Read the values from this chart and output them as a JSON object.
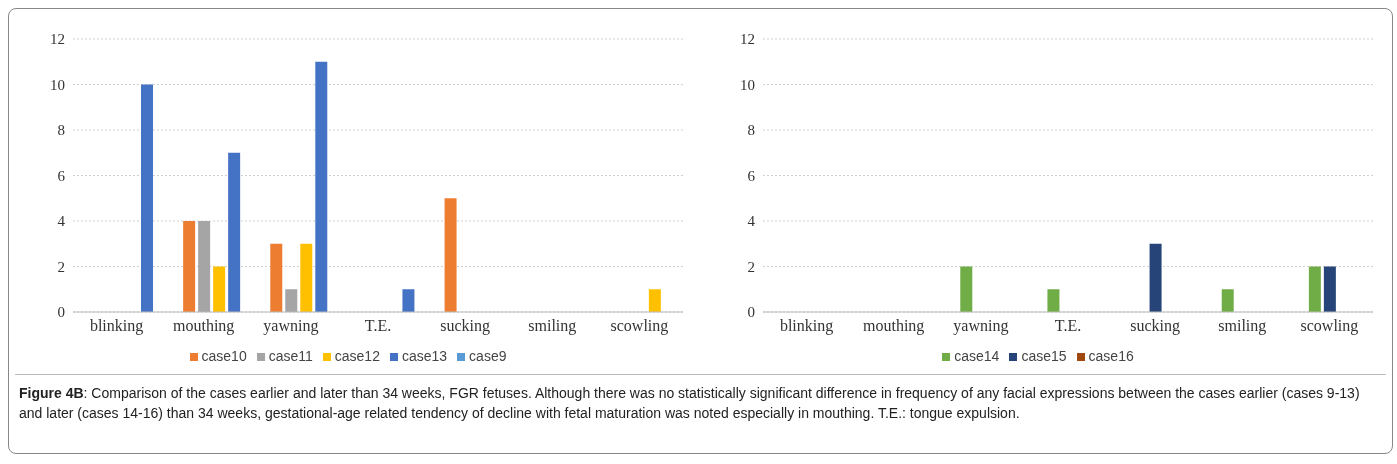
{
  "chart_data": [
    {
      "type": "bar",
      "categories": [
        "blinking",
        "mouthing",
        "yawning",
        "T.E.",
        "sucking",
        "smiling",
        "scowling"
      ],
      "series": [
        {
          "name": "case9",
          "color": "#5b9bd5",
          "values": [
            0,
            0,
            0,
            0,
            0,
            0,
            0
          ]
        },
        {
          "name": "case10",
          "color": "#ed7d31",
          "values": [
            0,
            4,
            3,
            0,
            5,
            0,
            0
          ]
        },
        {
          "name": "case11",
          "color": "#a5a5a5",
          "values": [
            0,
            4,
            1,
            0,
            0,
            0,
            0
          ]
        },
        {
          "name": "case12",
          "color": "#ffc000",
          "values": [
            0,
            2,
            3,
            0,
            0,
            0,
            1
          ]
        },
        {
          "name": "case13",
          "color": "#4472c4",
          "values": [
            10,
            7,
            11,
            1,
            0,
            0,
            0
          ]
        }
      ],
      "ylim": [
        0,
        12
      ],
      "yticks": [
        0,
        2,
        4,
        6,
        8,
        10,
        12
      ],
      "grid": "y",
      "legend": "bottom",
      "annotations": [
        "Figure 4B: Comparison of the cases earlier and later than 34 weeks, FGR fetuses. Although there was no statistically significant difference in frequency of any facial expressions between the cases earlier (cases 9-13) and later (cases 14-16) than 34 weeks, gestational-age related tendency of decline with fetal maturation was noted especially in mouthing. T.E.: tongue expulsion."
      ]
    },
    {
      "type": "bar",
      "categories": [
        "blinking",
        "mouthing",
        "yawning",
        "T.E.",
        "sucking",
        "smiling",
        "scowling"
      ],
      "series": [
        {
          "name": "case14",
          "color": "#70ad47",
          "values": [
            0,
            0,
            2,
            1,
            0,
            1,
            2
          ]
        },
        {
          "name": "case15",
          "color": "#264478",
          "values": [
            0,
            0,
            0,
            0,
            3,
            0,
            2
          ]
        },
        {
          "name": "case16",
          "color": "#9e480e",
          "values": [
            0,
            0,
            0,
            0,
            0,
            0,
            0
          ]
        }
      ],
      "ylim": [
        0,
        12
      ],
      "yticks": [
        0,
        2,
        4,
        6,
        8,
        10,
        12
      ],
      "grid": "y",
      "legend": "bottom"
    }
  ]
}
